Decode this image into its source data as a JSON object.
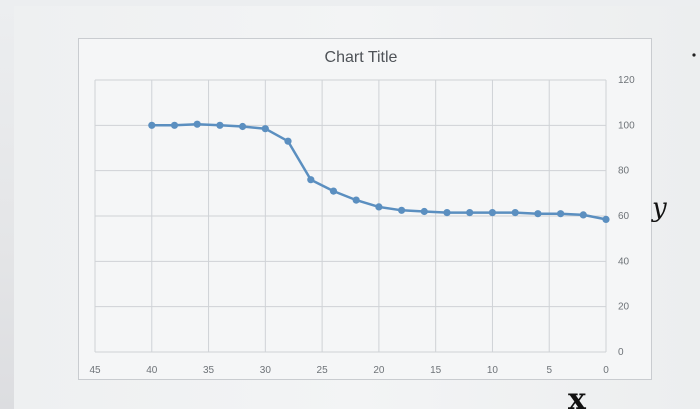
{
  "chart_data": {
    "type": "line",
    "title": "Chart Title",
    "xlabel": "",
    "ylabel": "",
    "x_reversed": true,
    "xlim": [
      45,
      0
    ],
    "ylim": [
      0,
      120
    ],
    "x_ticks": [
      45,
      40,
      35,
      30,
      25,
      20,
      15,
      10,
      5,
      0
    ],
    "y_ticks": [
      0,
      20,
      40,
      60,
      80,
      100,
      120
    ],
    "y_axis_position": "right",
    "grid": true,
    "legend": "none",
    "line_color": "#5b8fc0",
    "series": [
      {
        "x": [
          40,
          38,
          36,
          34,
          32,
          30,
          28,
          26,
          24,
          22,
          20,
          18,
          16,
          14,
          12,
          10,
          8,
          6,
          4,
          2,
          0
        ],
        "y": [
          100,
          100,
          100.5,
          100,
          99.5,
          98.5,
          93,
          76,
          71,
          67,
          64,
          62.5,
          62,
          61.5,
          61.5,
          61.5,
          61.5,
          61,
          61,
          60.5,
          58.5
        ]
      }
    ]
  },
  "annotations": {
    "x_mark": "x",
    "y_mark": "y"
  }
}
